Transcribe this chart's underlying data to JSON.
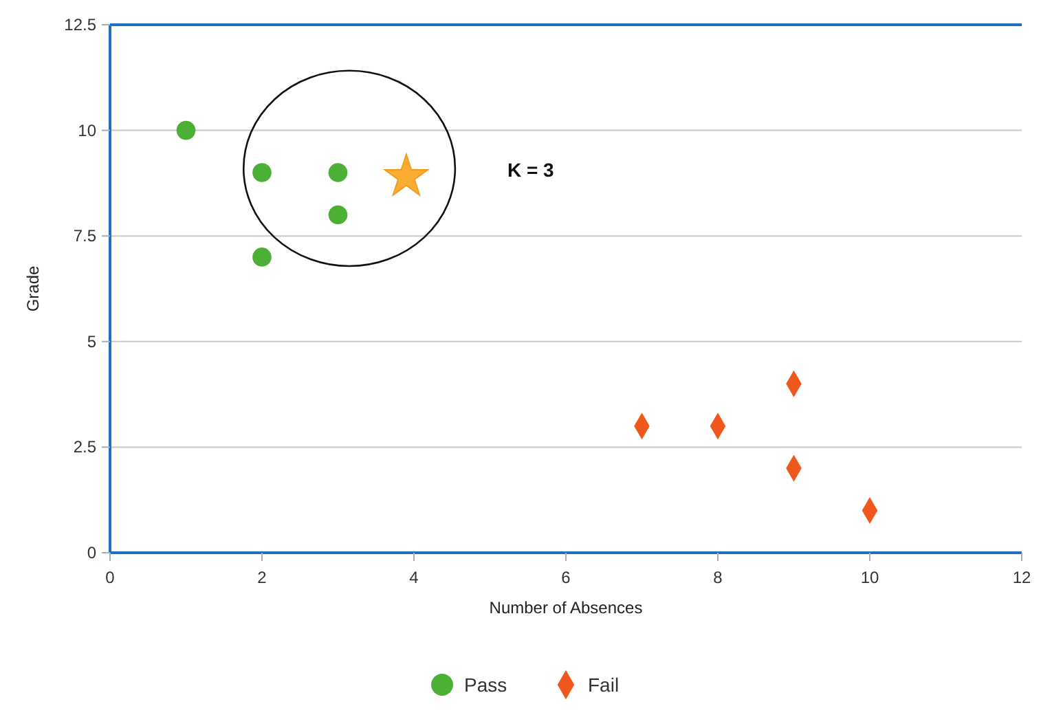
{
  "chart_data": {
    "type": "scatter",
    "xlabel": "Number of Absences",
    "ylabel": "Grade",
    "xlim": [
      0,
      12
    ],
    "xticks": [
      0,
      2,
      4,
      6,
      8,
      10,
      12
    ],
    "ylim": [
      0,
      12.5
    ],
    "yticks": [
      0,
      2.5,
      5,
      7.5,
      10,
      12.5
    ],
    "grid": "y",
    "legend": "bottom",
    "annotations": [
      "K = 3"
    ],
    "series": [
      {
        "name": "Pass",
        "color": "#4caf36",
        "marker": "circle",
        "x": [
          1,
          2,
          2,
          3,
          3
        ],
        "values": [
          10,
          9,
          7,
          9,
          8
        ]
      },
      {
        "name": "Fail",
        "color": "#f0571c",
        "marker": "diamond",
        "x": [
          7,
          8,
          9,
          9,
          10
        ],
        "values": [
          3,
          3,
          4,
          2,
          1
        ]
      },
      {
        "color": "#fbad33",
        "marker": "star",
        "x": [
          3.9
        ],
        "values": [
          8.9
        ]
      }
    ]
  }
}
